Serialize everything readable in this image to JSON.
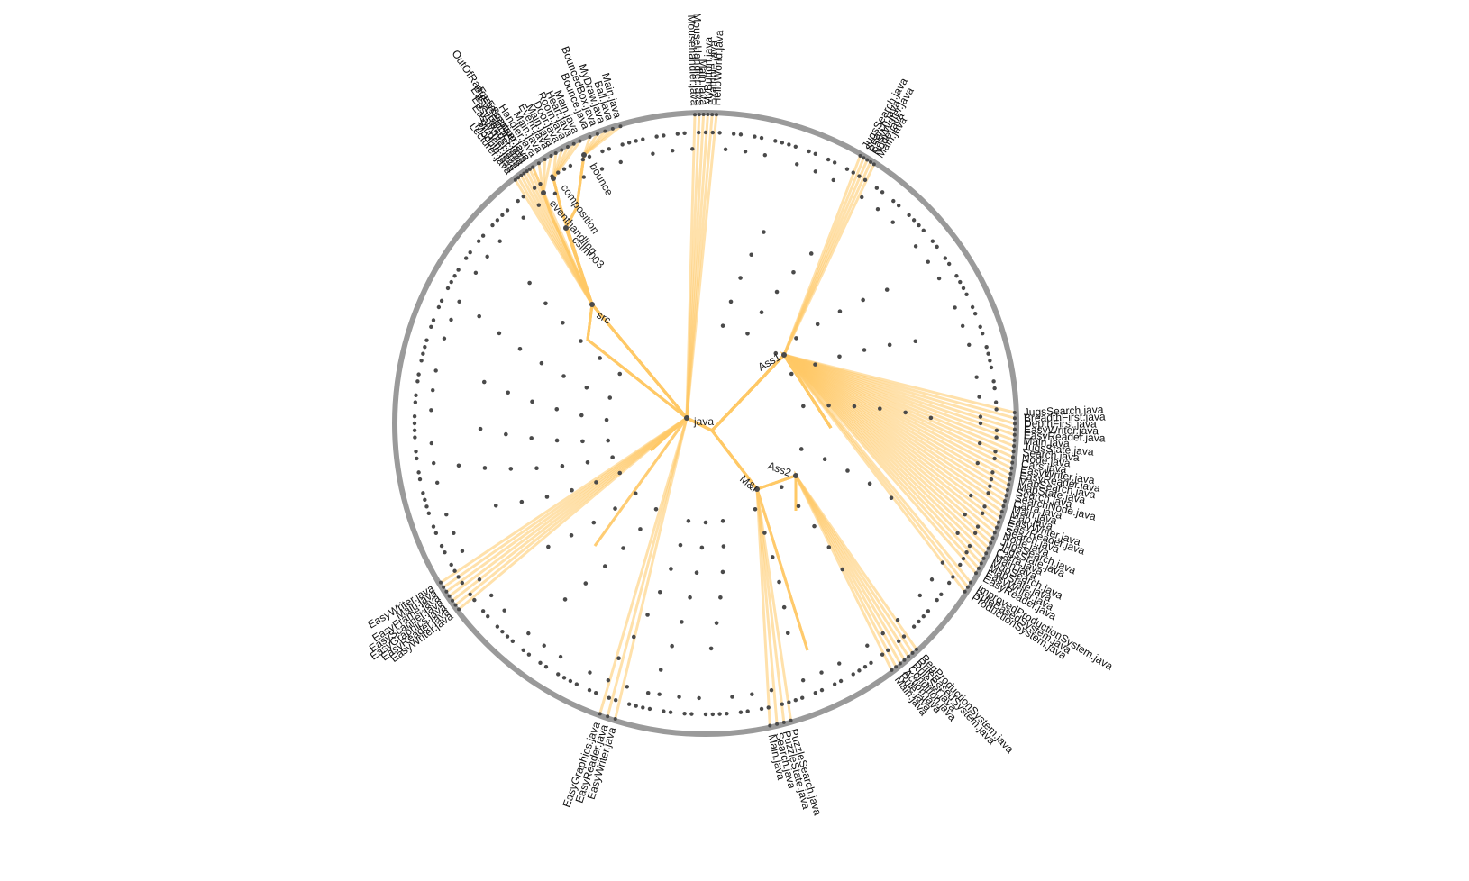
{
  "colors": {
    "ring": "#9a9a9a",
    "link": "#ffc966",
    "dot": "#4a4a4a",
    "text": "#222222"
  },
  "internal_nodes": [
    {
      "id": "java",
      "label": "java"
    },
    {
      "id": "src",
      "label": "src"
    },
    {
      "id": "Ass1",
      "label": "Ass1"
    },
    {
      "id": "Ass2",
      "label": "Ass2"
    },
    {
      "id": "MI",
      "label": "M&I"
    },
    {
      "id": "bounce",
      "label": "bounce"
    },
    {
      "id": "composition",
      "label": "composition"
    },
    {
      "id": "eventhandling",
      "label": "eventhandling"
    },
    {
      "id": "cslm003",
      "label": "cslm003"
    }
  ],
  "leaf_groups": [
    {
      "parent": "bounce",
      "labels": [
        "Bounce.java",
        "BouncedBox.java",
        "MyDraw.java",
        "Ball.java",
        "Main.java"
      ]
    },
    {
      "parent": "composition",
      "labels": [
        "Main.java",
        "Door.java",
        "Room.java",
        "Heart.java",
        "Main.java"
      ]
    },
    {
      "parent": "eventhandling",
      "labels": [
        "OutOfRangeException.java",
        "Handler.java",
        "Main.java",
        "Event.java"
      ]
    },
    {
      "parent": "src",
      "labels": [
        "Lecturer.java",
        "Module.java",
        "Student.java",
        "EasyWriter.java",
        "EasyReader.java",
        "EasyGraphics.java",
        "EasyScanner.java"
      ]
    },
    {
      "parent": "java",
      "labels": [
        "Mousehandler.java",
        "MouseHandler.java",
        "Main.java",
        "MyButton.java",
        "Example.java",
        "HelloWorld.java"
      ]
    },
    {
      "parent": "java",
      "labels": [
        "EasyWriter.java",
        "EasyReader.java",
        "EasyGraphics.java",
        "EasyScanner.java",
        "EasyFrame.java",
        "Main.java",
        "EasyWriter.java"
      ]
    },
    {
      "parent": "java",
      "labels": [
        "EasyWriter.java",
        "EasyReader.java",
        "EasyGraphics.java"
      ]
    },
    {
      "parent": "Ass1",
      "labels": [
        "JugsSearch.java",
        "Search.java",
        "EasyWriter.java",
        "Node.java",
        "Main.java"
      ]
    },
    {
      "parent": "Ass1",
      "labels": [
        "JugsSearch.java",
        "BreadthFirst.java",
        "DepthFirst.java",
        "EasyWriter.java",
        "EasyReader.java",
        "Main.java",
        "JugsState.java",
        "Search.java",
        "Node.java",
        "Cars.java",
        "EasyWriter.java",
        "EasyReader.java",
        "MapSearch.java",
        "MapState.java",
        "Search.java",
        "SearchNode.java",
        "Carra.java",
        "Main.java",
        "Map.java",
        "EasyWriter.java",
        "EasyReader.java",
        "Search.java",
        "Node.java",
        "JugsSearch.java",
        "JugsState.java",
        "Carra.java",
        "Main.java",
        "MapSearch.java",
        "MapState.java",
        "EasyWriter.java",
        "EasyReader.java"
      ]
    },
    {
      "parent": "Ass1",
      "labels": [
        "ImprovedProductionSystem.java",
        "RuleBasedSystem.java",
        "ProductionSystem.java"
      ]
    },
    {
      "parent": "Ass2",
      "labels": [
        "RegProductionSystem.java",
        "RuleBasedSystem.java",
        "RuleSet.java",
        "Condition.java",
        "Action.java",
        "Rule.java",
        "Main.java"
      ]
    },
    {
      "parent": "MI",
      "labels": [
        "PuzzleSearch.java",
        "PuzzleState.java",
        "Search.java",
        "Main.java"
      ]
    }
  ]
}
